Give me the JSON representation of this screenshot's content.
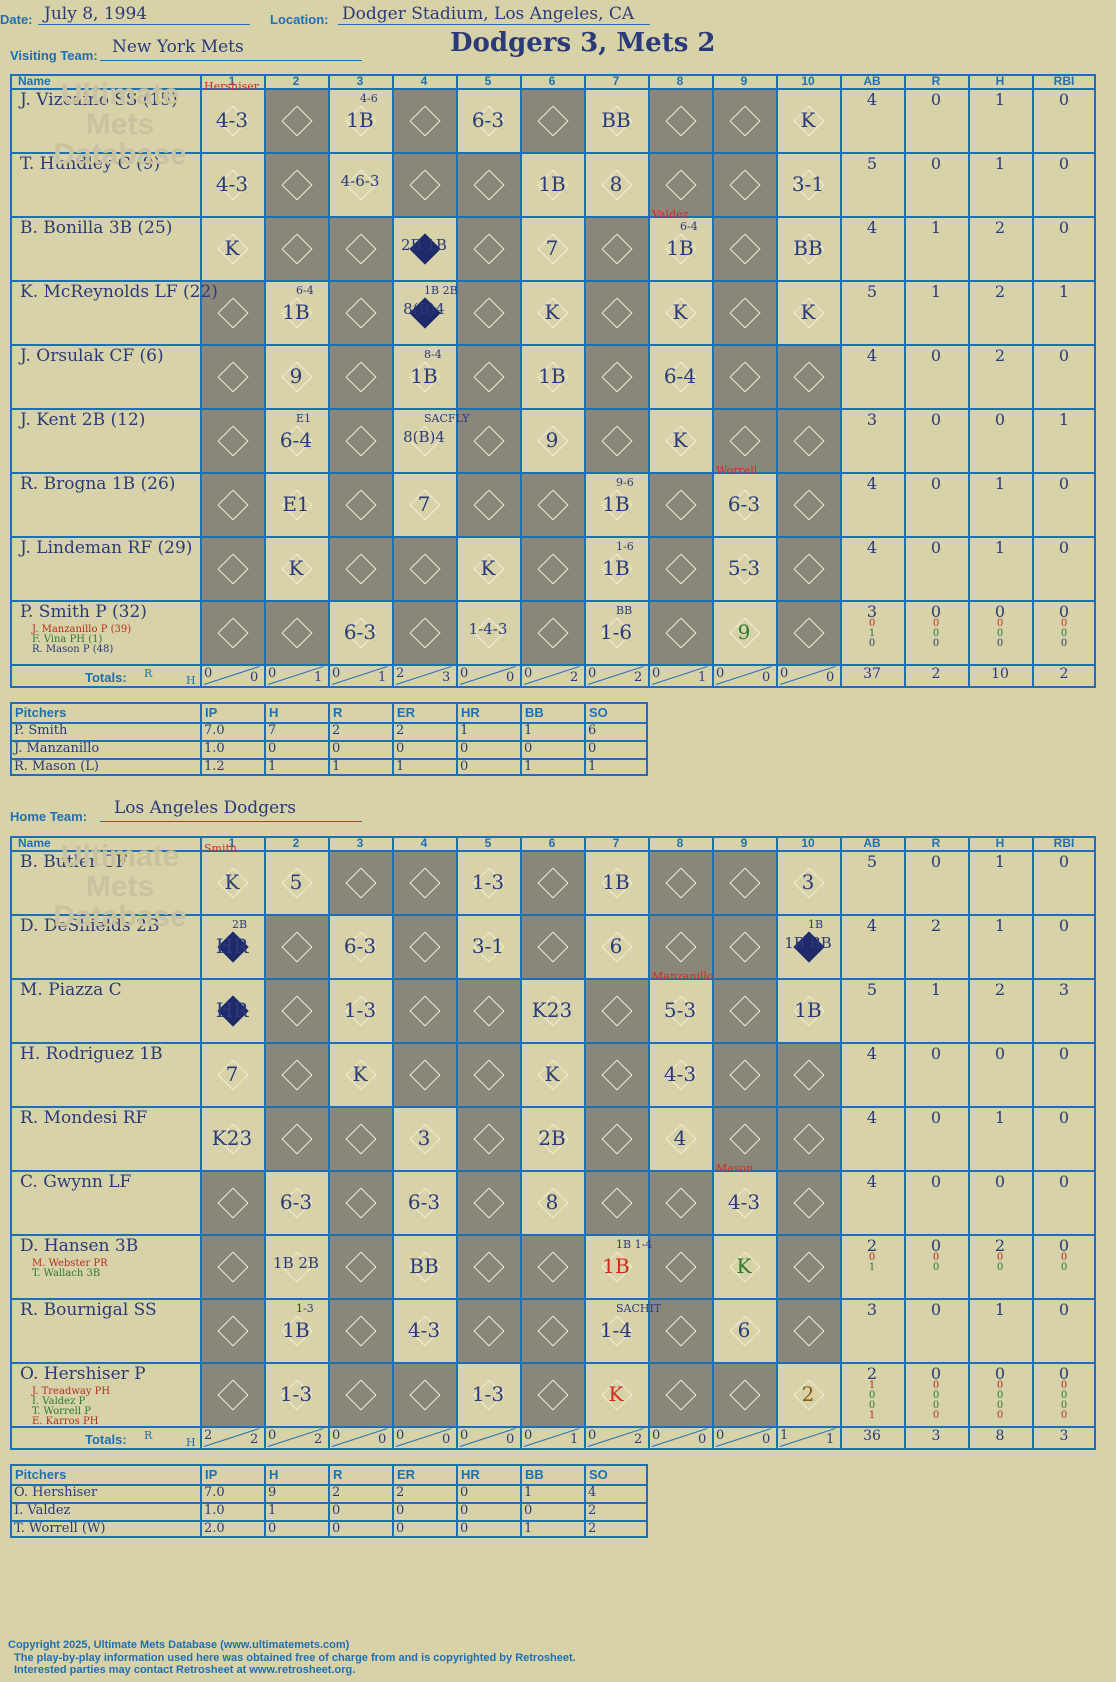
{
  "header": {
    "date_label": "Date:",
    "date": "July 8, 1994",
    "location_label": "Location:",
    "location": "Dodger Stadium, Los Angeles, CA",
    "visiting_label": "Visiting Team:",
    "visiting_team": "New York Mets",
    "home_label": "Home Team:",
    "home_team": "Los Angeles Dodgers",
    "game_title": "Dodgers 3, Mets 2"
  },
  "columns": {
    "name": "Name",
    "innings": [
      "1",
      "2",
      "3",
      "4",
      "5",
      "6",
      "7",
      "8",
      "9",
      "10"
    ],
    "stats": [
      "AB",
      "R",
      "H",
      "RBI"
    ]
  },
  "visitors": {
    "batters": [
      {
        "name": "J. Vizcaino SS (15)",
        "subs": [],
        "ab": [
          "4"
        ],
        "r": [
          "0"
        ],
        "h": [
          "1"
        ],
        "rbi": [
          "0"
        ],
        "plays": [
          {
            "inn": 1,
            "text": "4-3"
          },
          {
            "inn": 3,
            "text": "1B",
            "note": "4-6"
          },
          {
            "inn": 5,
            "text": "6-3"
          },
          {
            "inn": 7,
            "text": "BB"
          },
          {
            "inn": 10,
            "text": "K"
          }
        ]
      },
      {
        "name": "T. Hundley C (9)",
        "subs": [],
        "ab": [
          "5"
        ],
        "r": [
          "0"
        ],
        "h": [
          "1"
        ],
        "rbi": [
          "0"
        ],
        "plays": [
          {
            "inn": 1,
            "text": "4-3"
          },
          {
            "inn": 3,
            "text": "4-6-3"
          },
          {
            "inn": 6,
            "text": "1B"
          },
          {
            "inn": 7,
            "text": "8"
          },
          {
            "inn": 10,
            "text": "3-1"
          }
        ]
      },
      {
        "name": "B. Bonilla 3B (25)",
        "subs": [],
        "ab": [
          "4"
        ],
        "r": [
          "1"
        ],
        "h": [
          "2"
        ],
        "rbi": [
          "0"
        ],
        "plays": [
          {
            "inn": 1,
            "text": "K"
          },
          {
            "inn": 4,
            "text": "2B 1B",
            "scored": true
          },
          {
            "inn": 6,
            "text": "7"
          },
          {
            "inn": 8,
            "text": "1B",
            "note": "6-4"
          },
          {
            "inn": 10,
            "text": "BB"
          }
        ]
      },
      {
        "name": "K. McReynolds LF (22)",
        "subs": [],
        "ab": [
          "5"
        ],
        "r": [
          "1"
        ],
        "h": [
          "2"
        ],
        "rbi": [
          "1"
        ],
        "plays": [
          {
            "inn": 2,
            "text": "1B",
            "note": "6-4"
          },
          {
            "inn": 4,
            "text": "8(B)4",
            "note": "1B 2B",
            "scored": true
          },
          {
            "inn": 6,
            "text": "K"
          },
          {
            "inn": 8,
            "text": "K"
          },
          {
            "inn": 10,
            "text": "K"
          }
        ]
      },
      {
        "name": "J. Orsulak CF (6)",
        "subs": [],
        "ab": [
          "4"
        ],
        "r": [
          "0"
        ],
        "h": [
          "2"
        ],
        "rbi": [
          "0"
        ],
        "plays": [
          {
            "inn": 2,
            "text": "9"
          },
          {
            "inn": 4,
            "text": "1B",
            "note": "8-4"
          },
          {
            "inn": 6,
            "text": "1B"
          },
          {
            "inn": 8,
            "text": "6-4"
          }
        ]
      },
      {
        "name": "J. Kent 2B (12)",
        "subs": [],
        "ab": [
          "3"
        ],
        "r": [
          "0"
        ],
        "h": [
          "0"
        ],
        "rbi": [
          "1"
        ],
        "plays": [
          {
            "inn": 2,
            "text": "6-4",
            "note": "E1"
          },
          {
            "inn": 4,
            "text": "8(B)4",
            "note": "SACFLY"
          },
          {
            "inn": 6,
            "text": "9"
          },
          {
            "inn": 8,
            "text": "K"
          }
        ]
      },
      {
        "name": "R. Brogna 1B (26)",
        "subs": [],
        "ab": [
          "4"
        ],
        "r": [
          "0"
        ],
        "h": [
          "1"
        ],
        "rbi": [
          "0"
        ],
        "plays": [
          {
            "inn": 2,
            "text": "E1"
          },
          {
            "inn": 4,
            "text": "7"
          },
          {
            "inn": 7,
            "text": "1B",
            "note": "9-6"
          },
          {
            "inn": 9,
            "text": "6-3",
            "pitch": "Worrell"
          }
        ]
      },
      {
        "name": "J. Lindeman RF (29)",
        "subs": [],
        "ab": [
          "4"
        ],
        "r": [
          "0"
        ],
        "h": [
          "1"
        ],
        "rbi": [
          "0"
        ],
        "plays": [
          {
            "inn": 2,
            "text": "K"
          },
          {
            "inn": 5,
            "text": "K"
          },
          {
            "inn": 7,
            "text": "1B",
            "note": "1-6"
          },
          {
            "inn": 9,
            "text": "5-3"
          }
        ]
      },
      {
        "name": "P. Smith P (32)",
        "subs": [
          {
            "text": "J. Manzanillo P (39)",
            "color": "#b03020"
          },
          {
            "text": "F. Vina PH (1)",
            "color": "#2a7a2a"
          },
          {
            "text": "R. Mason P (48)",
            "color": "#2a3a7a"
          }
        ],
        "ab": [
          "3",
          "0",
          "1",
          "0"
        ],
        "r": [
          "0",
          "0",
          "0",
          "0"
        ],
        "h": [
          "0",
          "0",
          "0",
          "0"
        ],
        "rbi": [
          "0",
          "0",
          "0",
          "0"
        ],
        "plays": [
          {
            "inn": 3,
            "text": "6-3"
          },
          {
            "inn": 5,
            "text": "1-4-3"
          },
          {
            "inn": 7,
            "text": "1-6",
            "note": "BB"
          },
          {
            "inn": 9,
            "text": "9",
            "color": "#2a7a2a"
          }
        ]
      }
    ],
    "totals_label": "Totals:",
    "rh_label": [
      "R",
      "H"
    ],
    "inning_totals": [
      [
        "0",
        "0"
      ],
      [
        "0",
        "1"
      ],
      [
        "0",
        "1"
      ],
      [
        "2",
        "3"
      ],
      [
        "0",
        "0"
      ],
      [
        "0",
        "2"
      ],
      [
        "0",
        "2"
      ],
      [
        "0",
        "1"
      ],
      [
        "0",
        "0"
      ],
      [
        "0",
        "0"
      ]
    ],
    "totals": [
      "37",
      "2",
      "10",
      "2"
    ],
    "first_pitcher_note": "Hershiser",
    "pitchers": {
      "headers": [
        "Pitchers",
        "IP",
        "H",
        "R",
        "ER",
        "HR",
        "BB",
        "SO"
      ],
      "rows": [
        [
          "P. Smith",
          "7.0",
          "7",
          "2",
          "2",
          "1",
          "1",
          "6"
        ],
        [
          "J. Manzanillo",
          "1.0",
          "0",
          "0",
          "0",
          "0",
          "0",
          "0"
        ],
        [
          "R. Mason (L)",
          "1.2",
          "1",
          "1",
          "1",
          "0",
          "1",
          "1"
        ]
      ]
    }
  },
  "home": {
    "batters": [
      {
        "name": "B. Butler CF",
        "subs": [],
        "ab": [
          "5"
        ],
        "r": [
          "0"
        ],
        "h": [
          "1"
        ],
        "rbi": [
          "0"
        ],
        "plays": [
          {
            "inn": 1,
            "text": "K"
          },
          {
            "inn": 2,
            "text": "5"
          },
          {
            "inn": 5,
            "text": "1-3"
          },
          {
            "inn": 7,
            "text": "1B"
          },
          {
            "inn": 10,
            "text": "3"
          }
        ]
      },
      {
        "name": "D. DeShields 2B",
        "subs": [],
        "ab": [
          "4"
        ],
        "r": [
          "2"
        ],
        "h": [
          "1"
        ],
        "rbi": [
          "0"
        ],
        "plays": [
          {
            "inn": 1,
            "text": "HR",
            "note": "2B",
            "scored": true
          },
          {
            "inn": 3,
            "text": "6-3"
          },
          {
            "inn": 5,
            "text": "3-1"
          },
          {
            "inn": 7,
            "text": "6"
          },
          {
            "inn": 10,
            "text": "1B BB",
            "note": "1B",
            "scored": true
          }
        ]
      },
      {
        "name": "M. Piazza C",
        "subs": [],
        "ab": [
          "5"
        ],
        "r": [
          "1"
        ],
        "h": [
          "2"
        ],
        "rbi": [
          "3"
        ],
        "plays": [
          {
            "inn": 1,
            "text": "HR",
            "scored": true
          },
          {
            "inn": 3,
            "text": "1-3"
          },
          {
            "inn": 6,
            "text": "K23"
          },
          {
            "inn": 8,
            "text": "5-3",
            "pitch": "Manzanillo"
          },
          {
            "inn": 10,
            "text": "1B"
          }
        ]
      },
      {
        "name": "H. Rodriguez 1B",
        "subs": [],
        "ab": [
          "4"
        ],
        "r": [
          "0"
        ],
        "h": [
          "0"
        ],
        "rbi": [
          "0"
        ],
        "plays": [
          {
            "inn": 1,
            "text": "7"
          },
          {
            "inn": 3,
            "text": "K"
          },
          {
            "inn": 6,
            "text": "K"
          },
          {
            "inn": 8,
            "text": "4-3"
          }
        ]
      },
      {
        "name": "R. Mondesi RF",
        "subs": [],
        "ab": [
          "4"
        ],
        "r": [
          "0"
        ],
        "h": [
          "1"
        ],
        "rbi": [
          "0"
        ],
        "plays": [
          {
            "inn": 1,
            "text": "K23"
          },
          {
            "inn": 4,
            "text": "3"
          },
          {
            "inn": 6,
            "text": "2B"
          },
          {
            "inn": 8,
            "text": "4"
          }
        ]
      },
      {
        "name": "C. Gwynn LF",
        "subs": [],
        "ab": [
          "4"
        ],
        "r": [
          "0"
        ],
        "h": [
          "0"
        ],
        "rbi": [
          "0"
        ],
        "plays": [
          {
            "inn": 2,
            "text": "6-3"
          },
          {
            "inn": 4,
            "text": "6-3"
          },
          {
            "inn": 6,
            "text": "8"
          },
          {
            "inn": 9,
            "text": "4-3",
            "pitch": "Mason"
          }
        ]
      },
      {
        "name": "D. Hansen 3B",
        "subs": [
          {
            "text": "M. Webster PR",
            "color": "#b03020"
          },
          {
            "text": "T. Wallach 3B",
            "color": "#2a7a2a"
          }
        ],
        "ab": [
          "2",
          "0",
          "1"
        ],
        "r": [
          "0",
          "0",
          "0"
        ],
        "h": [
          "2",
          "0",
          "0"
        ],
        "rbi": [
          "0",
          "0",
          "0"
        ],
        "plays": [
          {
            "inn": 2,
            "text": "1B 2B"
          },
          {
            "inn": 4,
            "text": "BB"
          },
          {
            "inn": 7,
            "text": "1B",
            "note": "1B 1-4",
            "color": "#d02a20"
          },
          {
            "inn": 9,
            "text": "K",
            "color": "#2a7a2a"
          }
        ]
      },
      {
        "name": "R. Bournigal SS",
        "subs": [],
        "ab": [
          "3"
        ],
        "r": [
          "0"
        ],
        "h": [
          "1"
        ],
        "rbi": [
          "0"
        ],
        "plays": [
          {
            "inn": 2,
            "text": "1B",
            "note": "1-3"
          },
          {
            "inn": 4,
            "text": "4-3"
          },
          {
            "inn": 7,
            "text": "1-4",
            "note": "SACHIT"
          },
          {
            "inn": 9,
            "text": "6"
          }
        ]
      },
      {
        "name": "O. Hershiser P",
        "subs": [
          {
            "text": "J. Treadway PH",
            "color": "#b03020"
          },
          {
            "text": "I. Valdez P",
            "color": "#2a7a2a"
          },
          {
            "text": "T. Worrell P",
            "color": "#2a7a2a"
          },
          {
            "text": "E. Karros PH",
            "color": "#b03020"
          }
        ],
        "ab": [
          "2",
          "1",
          "0",
          "0",
          "1"
        ],
        "r": [
          "0",
          "0",
          "0",
          "0",
          "0"
        ],
        "h": [
          "0",
          "0",
          "0",
          "0",
          "0"
        ],
        "rbi": [
          "0",
          "0",
          "0",
          "0",
          "0"
        ],
        "plays": [
          {
            "inn": 2,
            "text": "1-3"
          },
          {
            "inn": 5,
            "text": "1-3"
          },
          {
            "inn": 7,
            "text": "K",
            "color": "#d02a20"
          },
          {
            "inn": 10,
            "text": "2",
            "color": "#8a5a10"
          }
        ]
      }
    ],
    "totals_label": "Totals:",
    "rh_label": [
      "R",
      "H"
    ],
    "inning_totals": [
      [
        "2",
        "2"
      ],
      [
        "0",
        "2"
      ],
      [
        "0",
        "0"
      ],
      [
        "0",
        "0"
      ],
      [
        "0",
        "0"
      ],
      [
        "0",
        "1"
      ],
      [
        "0",
        "2"
      ],
      [
        "0",
        "0"
      ],
      [
        "0",
        "0"
      ],
      [
        "1",
        "1"
      ]
    ],
    "totals": [
      "36",
      "3",
      "8",
      "3"
    ],
    "first_pitcher_note": "Smith",
    "pitchers": {
      "headers": [
        "Pitchers",
        "IP",
        "H",
        "R",
        "ER",
        "HR",
        "BB",
        "SO"
      ],
      "rows": [
        [
          "O. Hershiser",
          "7.0",
          "9",
          "2",
          "2",
          "0",
          "1",
          "4"
        ],
        [
          "I. Valdez",
          "1.0",
          "1",
          "0",
          "0",
          "0",
          "0",
          "2"
        ],
        [
          "T. Worrell (W)",
          "2.0",
          "0",
          "0",
          "0",
          "0",
          "1",
          "2"
        ]
      ]
    }
  },
  "pitch_change_notes": {
    "visitors_inn8": "Valdez"
  },
  "watermark": {
    "line1": "Ultimate",
    "line2": "Mets",
    "line3": "Database",
    "url": "ultimatemets.com"
  },
  "footer": {
    "line1": "Copyright 2025, Ultimate Mets Database (www.ultimatemets.com)",
    "line2": "The play-by-play information used here was obtained free of charge from and is copyrighted by Retrosheet.",
    "line3": "Interested parties may contact Retrosheet at www.retrosheet.org."
  },
  "colors": {
    "accent": "#1f6fb3",
    "ink": "#2a3a7a",
    "paper": "#d8d2a8",
    "shade": "#8a877a",
    "red": "#d02a20"
  }
}
